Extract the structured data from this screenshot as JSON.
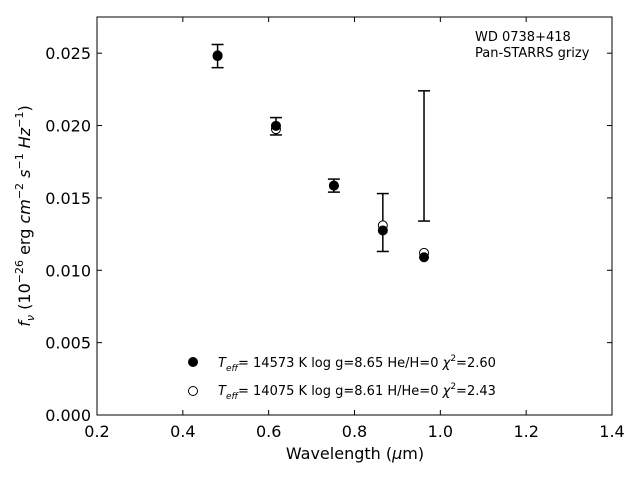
{
  "chart_data": {
    "type": "scatter",
    "xlabel_pre": "Wavelength (",
    "xlabel_mu": "μ",
    "xlabel_post": "m)",
    "annotation": [
      "WD 0738+418",
      "Pan-STARRS grizy"
    ],
    "xlim": [
      0.2,
      1.4
    ],
    "ylim": [
      0.0,
      0.0275
    ],
    "xticks": [
      0.2,
      0.4,
      0.6,
      0.8,
      1.0,
      1.2,
      1.4
    ],
    "xtick_labels": [
      "0.2",
      "0.4",
      "0.6",
      "0.8",
      "1.0",
      "1.2",
      "1.4"
    ],
    "yticks": [
      0.0,
      0.005,
      0.01,
      0.015,
      0.02,
      0.025
    ],
    "ytick_labels": [
      "0.000",
      "0.005",
      "0.010",
      "0.015",
      "0.020",
      "0.025"
    ],
    "grid": false,
    "legend_position": "bottom-center",
    "observed": {
      "x": [
        0.481,
        0.617,
        0.752,
        0.866,
        0.962
      ],
      "y": [
        0.0248,
        0.01995,
        0.01585,
        0.0133,
        0.0179
      ],
      "yerr": [
        0.0008,
        0.0006,
        0.00045,
        0.002,
        0.0045
      ]
    },
    "series": [
      {
        "marker": "filled-circle",
        "x": [
          0.481,
          0.617,
          0.752,
          0.866,
          0.962
        ],
        "y": [
          0.02485,
          0.01998,
          0.01585,
          0.01275,
          0.0109
        ],
        "legend": {
          "teff_value": "= 14573 K",
          "logg": "log g=8.65",
          "comp": "He/H=0",
          "chi_value": "=2.60"
        }
      },
      {
        "marker": "open-circle",
        "x": [
          0.481,
          0.617,
          0.752,
          0.866,
          0.962
        ],
        "y": [
          0.0248,
          0.01975,
          0.01585,
          0.0131,
          0.0112
        ],
        "legend": {
          "teff_value": "= 14075 K",
          "logg": "log g=8.61",
          "comp": "H/He=0",
          "chi_value": "=2.43"
        }
      }
    ]
  }
}
